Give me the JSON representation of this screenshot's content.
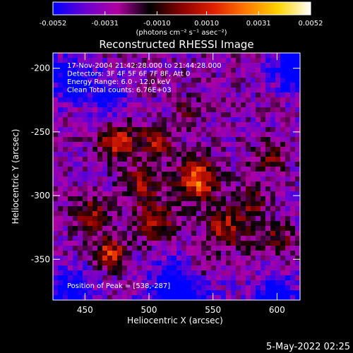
{
  "colorbar": {
    "tick_labels": [
      "-0.0052",
      "-0.0031",
      "-0.0010",
      "0.0010",
      "0.0031",
      "0.0052"
    ],
    "tick_values": [
      -0.0052,
      -0.0031,
      -0.001,
      0.001,
      0.0031,
      0.0052
    ],
    "range": [
      -0.0052,
      0.0052
    ],
    "units_label": "(photons cm⁻² s⁻¹ asec⁻²)",
    "colormap": [
      "#0000ff",
      "#6a00d0",
      "#b000a0",
      "#000000",
      "#8a0000",
      "#e02000",
      "#ff7a00",
      "#ffd400",
      "#ffffff"
    ]
  },
  "chart_data": {
    "type": "heatmap",
    "title": "Reconstructed RHESSI Image",
    "xlabel": "Heliocentric X (arcsec)",
    "ylabel": "Heliocentric Y (arcsec)",
    "xlim": [
      425,
      618
    ],
    "ylim": [
      -382,
      -188
    ],
    "x_ticks": [
      450,
      500,
      550,
      600
    ],
    "y_ticks": [
      -200,
      -250,
      -300,
      -350
    ],
    "x_tick_labels": [
      "450",
      "500",
      "550",
      "600"
    ],
    "y_tick_labels": [
      "-200",
      "-250",
      "-300",
      "-350"
    ],
    "annotations": [
      "17-Nov-2004 21:42:28.000 to 21:44:28.000",
      "Detectors: 3F 4F 5F 6F 7F 8F, Att 0",
      "Energy Range: 6.0 - 12.0 keV",
      "Clean     Total counts: 6.76E+03"
    ],
    "peak_label": "Position of Peak = [538,-287]",
    "peak": [
      538,
      -287
    ],
    "sources": [
      {
        "x": 538,
        "y": -287,
        "amp": 0.0052,
        "sigma": 11
      },
      {
        "x": 475,
        "y": -258,
        "amp": 0.004,
        "sigma": 10
      },
      {
        "x": 505,
        "y": -258,
        "amp": 0.0032,
        "sigma": 9
      },
      {
        "x": 470,
        "y": -345,
        "amp": 0.0043,
        "sigma": 8
      },
      {
        "x": 455,
        "y": -315,
        "amp": 0.003,
        "sigma": 10
      },
      {
        "x": 505,
        "y": -320,
        "amp": 0.003,
        "sigma": 12
      },
      {
        "x": 560,
        "y": -325,
        "amp": 0.0034,
        "sigma": 12
      },
      {
        "x": 600,
        "y": -335,
        "amp": 0.0026,
        "sigma": 9
      },
      {
        "x": 595,
        "y": -270,
        "amp": 0.0024,
        "sigma": 9
      },
      {
        "x": 580,
        "y": -305,
        "amp": 0.0026,
        "sigma": 8
      },
      {
        "x": 495,
        "y": -290,
        "amp": 0.0028,
        "sigma": 10
      },
      {
        "x": 540,
        "y": -360,
        "amp": 0.002,
        "sigma": 10
      },
      {
        "x": 530,
        "y": -235,
        "amp": 0.0018,
        "sigma": 8
      }
    ],
    "negative_regions": [
      {
        "x": 615,
        "y": -200,
        "amp": -0.0045,
        "sigma": 12
      },
      {
        "x": 440,
        "y": -210,
        "amp": -0.0035,
        "sigma": 12
      },
      {
        "x": 525,
        "y": -375,
        "amp": -0.004,
        "sigma": 18
      },
      {
        "x": 440,
        "y": -375,
        "amp": -0.003,
        "sigma": 12
      },
      {
        "x": 600,
        "y": -380,
        "amp": -0.0035,
        "sigma": 12
      },
      {
        "x": 470,
        "y": -222,
        "amp": -0.0028,
        "sigma": 10
      }
    ]
  },
  "footer": {
    "timestamp": "5-May-2022 02:25"
  }
}
